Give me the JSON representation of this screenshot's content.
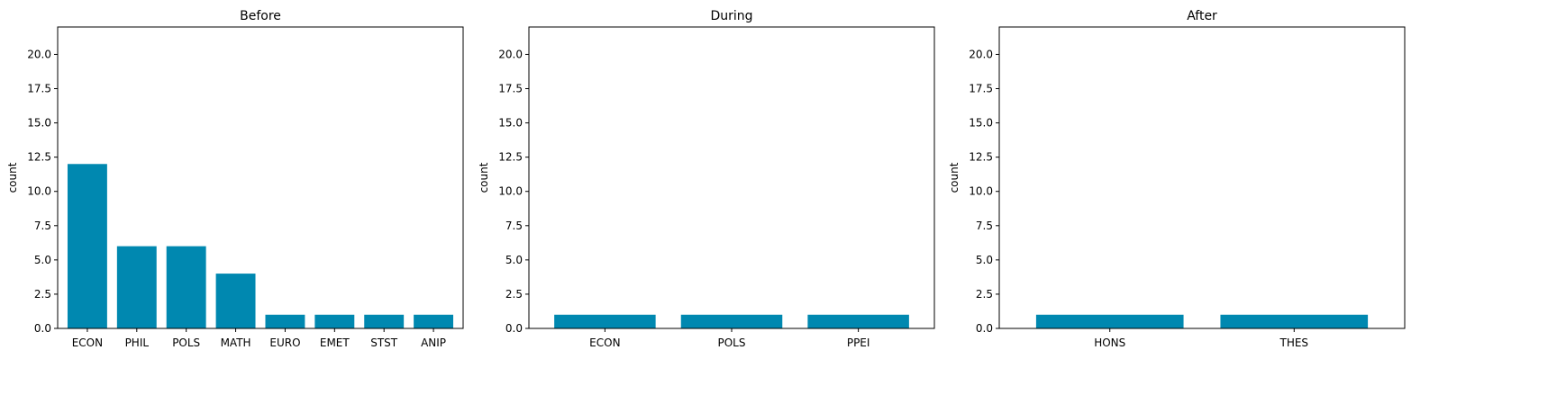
{
  "colors": {
    "bar": "#0088b0",
    "axis": "#000000",
    "background": "#ffffff"
  },
  "chart_data": [
    {
      "type": "bar",
      "title": "Before",
      "xlabel": "",
      "ylabel": "count",
      "ylim": [
        0,
        22
      ],
      "yticks": [
        "0.0",
        "2.5",
        "5.0",
        "7.5",
        "10.0",
        "12.5",
        "15.0",
        "17.5",
        "20.0"
      ],
      "categories": [
        "ECON",
        "PHIL",
        "POLS",
        "MATH",
        "EURO",
        "EMET",
        "STST",
        "ANIP"
      ],
      "values": [
        12,
        6,
        6,
        4,
        1,
        1,
        1,
        1
      ],
      "grid": false
    },
    {
      "type": "bar",
      "title": "During",
      "xlabel": "",
      "ylabel": "count",
      "ylim": [
        0,
        22
      ],
      "yticks": [
        "0.0",
        "2.5",
        "5.0",
        "7.5",
        "10.0",
        "12.5",
        "15.0",
        "17.5",
        "20.0"
      ],
      "categories": [
        "ECON",
        "POLS",
        "PPEI"
      ],
      "values": [
        1,
        1,
        1
      ],
      "grid": false
    },
    {
      "type": "bar",
      "title": "After",
      "xlabel": "",
      "ylabel": "count",
      "ylim": [
        0,
        22
      ],
      "yticks": [
        "0.0",
        "2.5",
        "5.0",
        "7.5",
        "10.0",
        "12.5",
        "15.0",
        "17.5",
        "20.0"
      ],
      "categories": [
        "HONS",
        "THES"
      ],
      "values": [
        1,
        1
      ],
      "grid": false
    }
  ]
}
